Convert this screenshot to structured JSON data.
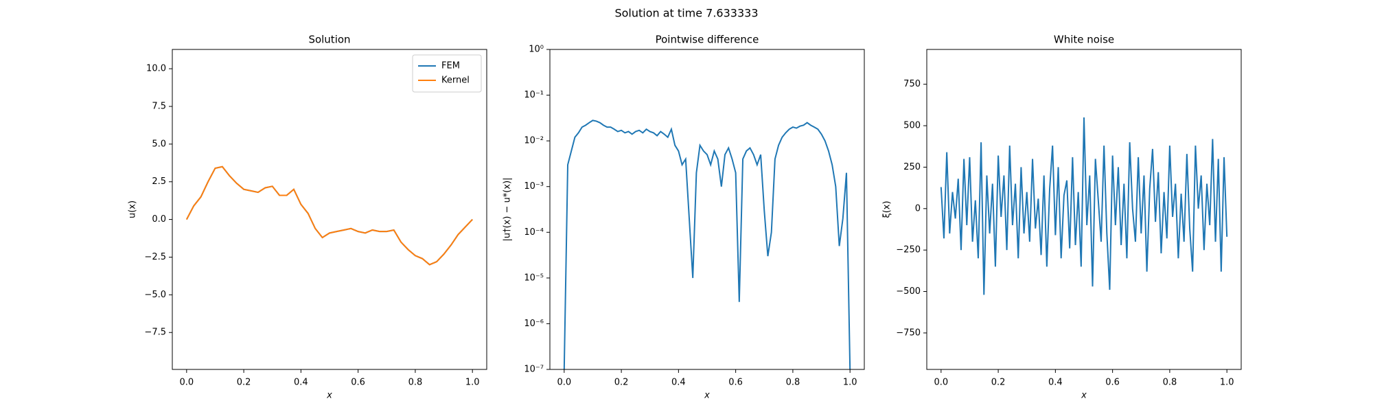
{
  "title": "Solution at time 7.633333",
  "chart_data": [
    {
      "type": "line",
      "title": "Solution",
      "xlabel": "x",
      "ylabel": "u(x)",
      "legend": "upper right",
      "x": [
        0,
        0.025,
        0.05,
        0.075,
        0.1,
        0.125,
        0.15,
        0.175,
        0.2,
        0.225,
        0.25,
        0.275,
        0.3,
        0.325,
        0.35,
        0.375,
        0.4,
        0.425,
        0.45,
        0.475,
        0.5,
        0.525,
        0.55,
        0.575,
        0.6,
        0.625,
        0.65,
        0.675,
        0.7,
        0.725,
        0.75,
        0.775,
        0.8,
        0.825,
        0.85,
        0.875,
        0.9,
        0.925,
        0.95,
        0.975,
        1
      ],
      "series": [
        {
          "name": "FEM",
          "color": "#1f77b4",
          "values": [
            0,
            0.9,
            1.5,
            2.5,
            3.4,
            3.5,
            2.9,
            2.4,
            2.0,
            1.9,
            1.8,
            2.1,
            2.2,
            1.6,
            1.6,
            2.0,
            1.0,
            0.4,
            -0.6,
            -1.2,
            -0.9,
            -0.8,
            -0.7,
            -0.6,
            -0.8,
            -0.9,
            -0.7,
            -0.8,
            -0.8,
            -0.7,
            -1.5,
            -2.0,
            -2.4,
            -2.6,
            -3.0,
            -2.8,
            -2.3,
            -1.7,
            -1.0,
            -0.5,
            0
          ]
        },
        {
          "name": "Kernel",
          "color": "#ff7f0e",
          "values": [
            0,
            0.9,
            1.5,
            2.5,
            3.4,
            3.5,
            2.9,
            2.4,
            2.0,
            1.9,
            1.8,
            2.1,
            2.2,
            1.6,
            1.6,
            2.0,
            1.0,
            0.4,
            -0.6,
            -1.2,
            -0.9,
            -0.8,
            -0.7,
            -0.6,
            -0.8,
            -0.9,
            -0.7,
            -0.8,
            -0.8,
            -0.7,
            -1.5,
            -2.0,
            -2.4,
            -2.6,
            -3.0,
            -2.8,
            -2.3,
            -1.7,
            -1.0,
            -0.5,
            0
          ]
        }
      ],
      "xlim": [
        -0.05,
        1.05
      ],
      "ylim": [
        -9.95,
        11.28
      ],
      "xticks": [
        {
          "value": 0,
          "label": "0.0"
        },
        {
          "value": 0.2,
          "label": "0.2"
        },
        {
          "value": 0.4,
          "label": "0.4"
        },
        {
          "value": 0.6,
          "label": "0.6"
        },
        {
          "value": 0.8,
          "label": "0.8"
        },
        {
          "value": 1,
          "label": "1.0"
        }
      ],
      "yticks": [
        {
          "value": -7.5,
          "label": "−7.5"
        },
        {
          "value": -5,
          "label": "−5.0"
        },
        {
          "value": -2.5,
          "label": "−2.5"
        },
        {
          "value": 0,
          "label": "0.0"
        },
        {
          "value": 2.5,
          "label": "2.5"
        },
        {
          "value": 5,
          "label": "5.0"
        },
        {
          "value": 7.5,
          "label": "7.5"
        },
        {
          "value": 10,
          "label": "10.0"
        }
      ]
    },
    {
      "type": "line",
      "title": "Pointwise difference",
      "xlabel": "x",
      "ylabel": "|u†(x) − u*(x)|",
      "yscale": "log",
      "x": [
        0,
        0.0125,
        0.025,
        0.0375,
        0.05,
        0.0625,
        0.075,
        0.0875,
        0.1,
        0.1125,
        0.125,
        0.1375,
        0.15,
        0.1625,
        0.175,
        0.1875,
        0.2,
        0.2125,
        0.225,
        0.2375,
        0.25,
        0.2625,
        0.275,
        0.2875,
        0.3,
        0.3125,
        0.325,
        0.3375,
        0.35,
        0.3625,
        0.375,
        0.3875,
        0.4,
        0.4125,
        0.425,
        0.4375,
        0.45,
        0.4625,
        0.475,
        0.4875,
        0.5,
        0.5125,
        0.525,
        0.5375,
        0.55,
        0.5625,
        0.575,
        0.5875,
        0.6,
        0.6125,
        0.625,
        0.6375,
        0.65,
        0.6625,
        0.675,
        0.6875,
        0.7,
        0.7125,
        0.725,
        0.7375,
        0.75,
        0.7625,
        0.775,
        0.7875,
        0.8,
        0.8125,
        0.825,
        0.8375,
        0.85,
        0.8625,
        0.875,
        0.8875,
        0.9,
        0.9125,
        0.925,
        0.9375,
        0.95,
        0.9625,
        0.975,
        0.9875,
        1
      ],
      "series": [
        {
          "color": "#1f77b4",
          "values": [
            1e-07,
            0.003,
            0.006,
            0.012,
            0.015,
            0.02,
            0.022,
            0.025,
            0.028,
            0.027,
            0.025,
            0.022,
            0.02,
            0.02,
            0.018,
            0.016,
            0.017,
            0.015,
            0.016,
            0.014,
            0.016,
            0.017,
            0.015,
            0.018,
            0.016,
            0.015,
            0.013,
            0.016,
            0.014,
            0.012,
            0.018,
            0.008,
            0.006,
            0.003,
            0.004,
            0.0002,
            1e-05,
            0.002,
            0.008,
            0.006,
            0.005,
            0.003,
            0.006,
            0.004,
            0.001,
            0.005,
            0.007,
            0.004,
            0.002,
            3e-06,
            0.004,
            0.006,
            0.007,
            0.005,
            0.003,
            0.005,
            0.0003,
            3e-05,
            0.0001,
            0.004,
            0.008,
            0.012,
            0.015,
            0.018,
            0.02,
            0.019,
            0.021,
            0.022,
            0.025,
            0.022,
            0.02,
            0.018,
            0.014,
            0.01,
            0.006,
            0.003,
            0.001,
            5e-05,
            0.0002,
            0.002,
            1e-07
          ]
        }
      ],
      "xlim": [
        -0.05,
        1.05
      ],
      "ylim": [
        1e-07,
        1
      ],
      "xticks": [
        {
          "value": 0,
          "label": "0.0"
        },
        {
          "value": 0.2,
          "label": "0.2"
        },
        {
          "value": 0.4,
          "label": "0.4"
        },
        {
          "value": 0.6,
          "label": "0.6"
        },
        {
          "value": 0.8,
          "label": "0.8"
        },
        {
          "value": 1,
          "label": "1.0"
        }
      ],
      "yticks": [
        {
          "value": 1e-07,
          "label": "10⁻⁷"
        },
        {
          "value": 1e-06,
          "label": "10⁻⁶"
        },
        {
          "value": 1e-05,
          "label": "10⁻⁵"
        },
        {
          "value": 0.0001,
          "label": "10⁻⁴"
        },
        {
          "value": 0.001,
          "label": "10⁻³"
        },
        {
          "value": 0.01,
          "label": "10⁻²"
        },
        {
          "value": 0.1,
          "label": "10⁻¹"
        },
        {
          "value": 1,
          "label": "10⁰"
        }
      ]
    },
    {
      "type": "line",
      "title": "White noise",
      "xlabel": "x",
      "ylabel": "ξ(x)",
      "x": [
        0,
        0.01,
        0.02,
        0.03,
        0.04,
        0.05,
        0.06,
        0.07,
        0.08,
        0.09,
        0.1,
        0.11,
        0.12,
        0.13,
        0.14,
        0.15,
        0.16,
        0.17,
        0.18,
        0.19,
        0.2,
        0.21,
        0.22,
        0.23,
        0.24,
        0.25,
        0.26,
        0.27,
        0.28,
        0.29,
        0.3,
        0.31,
        0.32,
        0.33,
        0.34,
        0.35,
        0.36,
        0.37,
        0.38,
        0.39,
        0.4,
        0.41,
        0.42,
        0.43,
        0.44,
        0.45,
        0.46,
        0.47,
        0.48,
        0.49,
        0.5,
        0.51,
        0.52,
        0.53,
        0.54,
        0.55,
        0.56,
        0.57,
        0.58,
        0.59,
        0.6,
        0.61,
        0.62,
        0.63,
        0.64,
        0.65,
        0.66,
        0.67,
        0.68,
        0.69,
        0.7,
        0.71,
        0.72,
        0.73,
        0.74,
        0.75,
        0.76,
        0.77,
        0.78,
        0.79,
        0.8,
        0.81,
        0.82,
        0.83,
        0.84,
        0.85,
        0.86,
        0.87,
        0.88,
        0.89,
        0.9,
        0.91,
        0.92,
        0.93,
        0.94,
        0.95,
        0.96,
        0.97,
        0.98,
        0.99,
        1
      ],
      "series": [
        {
          "color": "#1f77b4",
          "values": [
            130,
            -180,
            340,
            -150,
            100,
            -60,
            180,
            -250,
            300,
            -100,
            310,
            -200,
            50,
            -300,
            400,
            -520,
            200,
            -150,
            150,
            -350,
            320,
            -50,
            200,
            -250,
            380,
            -100,
            150,
            -300,
            250,
            -150,
            100,
            -200,
            300,
            -120,
            60,
            -280,
            200,
            -350,
            120,
            380,
            -160,
            250,
            -300,
            80,
            170,
            -240,
            310,
            -220,
            100,
            -350,
            550,
            -100,
            200,
            -470,
            300,
            50,
            -200,
            380,
            -150,
            -490,
            320,
            -100,
            250,
            -220,
            150,
            -300,
            400,
            0,
            -200,
            310,
            -150,
            200,
            -380,
            120,
            360,
            -80,
            220,
            -270,
            100,
            -180,
            380,
            -50,
            150,
            -300,
            90,
            -200,
            330,
            -120,
            -380,
            380,
            0,
            200,
            -250,
            150,
            -100,
            420,
            -200,
            300,
            -380,
            310,
            -170
          ]
        }
      ],
      "xlim": [
        -0.05,
        1.05
      ],
      "ylim": [
        -970,
        960
      ],
      "xticks": [
        {
          "value": 0,
          "label": "0.0"
        },
        {
          "value": 0.2,
          "label": "0.2"
        },
        {
          "value": 0.4,
          "label": "0.4"
        },
        {
          "value": 0.6,
          "label": "0.6"
        },
        {
          "value": 0.8,
          "label": "0.8"
        },
        {
          "value": 1,
          "label": "1.0"
        }
      ],
      "yticks": [
        {
          "value": -750,
          "label": "−750"
        },
        {
          "value": -500,
          "label": "−500"
        },
        {
          "value": -250,
          "label": "−250"
        },
        0,
        250,
        500,
        750
      ]
    }
  ]
}
